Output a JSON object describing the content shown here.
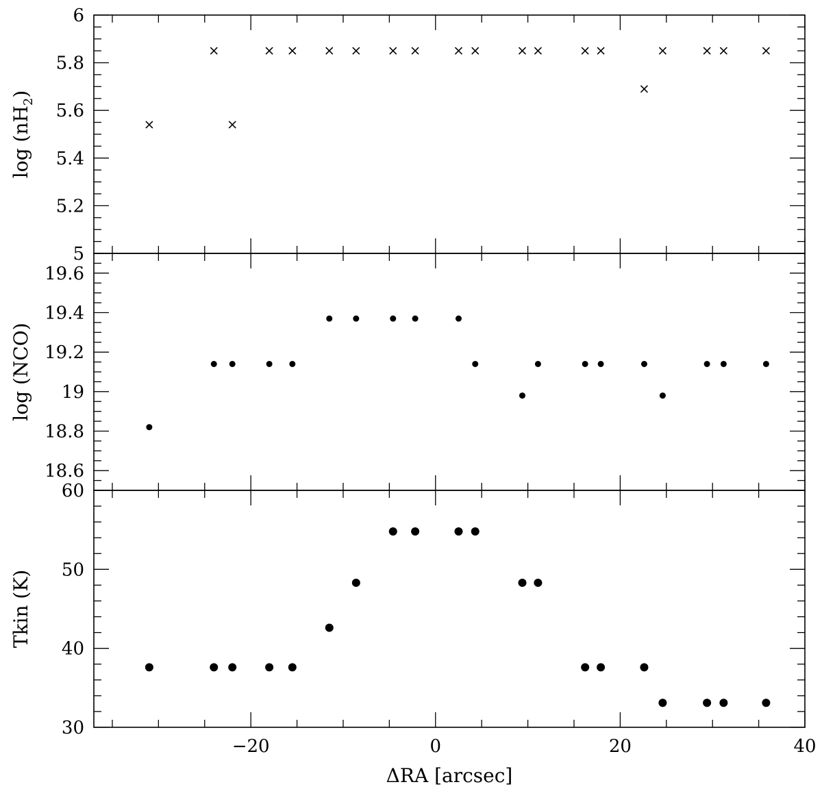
{
  "chart_data": [
    {
      "type": "scatter",
      "marker": "cross",
      "ylabel_prefix": "log (nH",
      "ylabel_sub": "2",
      "ylabel_suffix": ")",
      "xlim": [
        -37,
        40
      ],
      "ylim": [
        5,
        6
      ],
      "yticks": [
        5,
        5.2,
        5.4,
        5.6,
        5.8,
        6
      ],
      "ytick_labels": [
        "5",
        "5.2",
        "5.4",
        "5.6",
        "5.8",
        "6"
      ],
      "x": [
        -31,
        -24,
        -22,
        -18,
        -15.5,
        -11.5,
        -8.6,
        -4.6,
        -2.2,
        2.5,
        4.3,
        9.4,
        11.1,
        16.2,
        17.9,
        22.6,
        24.6,
        29.4,
        31.2,
        35.8
      ],
      "y": [
        5.54,
        5.85,
        5.54,
        5.85,
        5.85,
        5.85,
        5.85,
        5.85,
        5.85,
        5.85,
        5.85,
        5.85,
        5.85,
        5.85,
        5.85,
        5.69,
        5.85,
        5.85,
        5.85,
        5.85
      ]
    },
    {
      "type": "scatter",
      "marker": "dot",
      "ylabel": "log (NCO)",
      "xlim": [
        -37,
        40
      ],
      "ylim": [
        18.5,
        19.7
      ],
      "yticks": [
        18.6,
        18.8,
        19,
        19.2,
        19.4,
        19.6
      ],
      "ytick_labels": [
        "18.6",
        "18.8",
        "19",
        "19.2",
        "19.4",
        "19.6"
      ],
      "x": [
        -31,
        -24,
        -22,
        -18,
        -15.5,
        -11.5,
        -8.6,
        -4.6,
        -2.2,
        2.5,
        4.3,
        9.4,
        11.1,
        16.2,
        17.9,
        22.6,
        24.6,
        29.4,
        31.2,
        35.8
      ],
      "y": [
        18.82,
        19.14,
        19.14,
        19.14,
        19.14,
        19.37,
        19.37,
        19.37,
        19.37,
        19.37,
        19.14,
        18.98,
        19.14,
        19.14,
        19.14,
        19.14,
        18.98,
        19.14,
        19.14,
        19.14
      ]
    },
    {
      "type": "scatter",
      "marker": "dot",
      "ylabel": "Tkin (K)",
      "xlabel": "ΔRA [arcsec]",
      "xlim": [
        -37,
        40
      ],
      "ylim": [
        30,
        60
      ],
      "yticks": [
        30,
        40,
        50,
        60
      ],
      "ytick_labels": [
        "30",
        "40",
        "50",
        "60"
      ],
      "xticks": [
        -20,
        0,
        20,
        40
      ],
      "xtick_labels": [
        "−20",
        "0",
        "20",
        "40"
      ],
      "x": [
        -31,
        -24,
        -22,
        -18,
        -15.5,
        -11.5,
        -8.6,
        -4.6,
        -2.2,
        2.5,
        4.3,
        9.4,
        11.1,
        16.2,
        17.9,
        22.6,
        24.6,
        29.4,
        31.2,
        35.8
      ],
      "y": [
        37.6,
        37.6,
        37.6,
        37.6,
        37.6,
        42.6,
        48.3,
        54.8,
        54.8,
        54.8,
        54.8,
        48.3,
        48.3,
        37.6,
        37.6,
        37.6,
        33.1,
        33.1,
        33.1,
        33.1
      ]
    }
  ]
}
